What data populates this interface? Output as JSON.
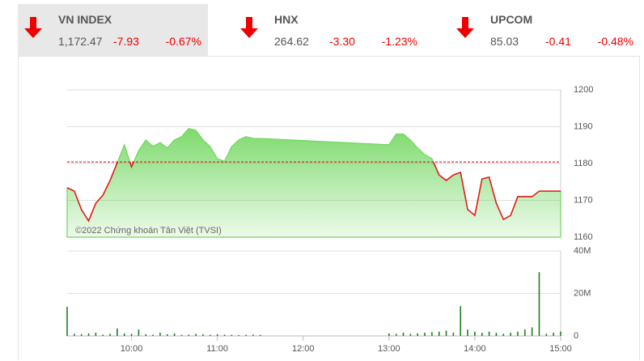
{
  "header": {
    "indices": [
      {
        "name": "VN INDEX",
        "value": "1,172.47",
        "change": "-7.93",
        "percent": "-0.67%"
      },
      {
        "name": "HNX",
        "value": "264.62",
        "change": "-3.30",
        "percent": "-1.23%"
      },
      {
        "name": "UPCOM",
        "value": "85.03",
        "change": "-0.41",
        "percent": "-0.48%"
      }
    ]
  },
  "chart_data": [
    {
      "type": "area",
      "annotation": "©2022 Chứng khoán Tân Việt (TVSI)",
      "x": [
        "09:15",
        "09:20",
        "09:25",
        "09:30",
        "09:35",
        "09:40",
        "09:45",
        "09:50",
        "09:55",
        "10:00",
        "10:05",
        "10:10",
        "10:15",
        "10:20",
        "10:25",
        "10:30",
        "10:35",
        "10:40",
        "10:45",
        "10:50",
        "10:55",
        "11:00",
        "11:05",
        "11:10",
        "11:15",
        "11:20",
        "11:25",
        "11:30",
        "13:00",
        "13:05",
        "13:10",
        "13:15",
        "13:20",
        "13:25",
        "13:30",
        "13:35",
        "13:40",
        "13:45",
        "13:50",
        "13:55",
        "14:00",
        "14:05",
        "14:10",
        "14:15",
        "14:20",
        "14:25",
        "14:30",
        "14:35",
        "14:40",
        "14:45",
        "14:50",
        "14:55",
        "15:00"
      ],
      "values": [
        1173.4,
        1172.5,
        1167.5,
        1164.4,
        1169.2,
        1171.4,
        1175.4,
        1180.2,
        1185.1,
        1179.1,
        1183.5,
        1186.4,
        1184.6,
        1185.7,
        1184.2,
        1186.4,
        1187.3,
        1189.5,
        1189.0,
        1186.4,
        1184.6,
        1181.3,
        1180.6,
        1184.6,
        1186.4,
        1187.3,
        1186.8,
        1186.8,
        1185.1,
        1188.0,
        1188.0,
        1186.4,
        1184.2,
        1182.4,
        1181.3,
        1176.9,
        1175.4,
        1176.9,
        1177.6,
        1167.5,
        1165.9,
        1175.8,
        1176.3,
        1169.2,
        1164.8,
        1165.9,
        1171.0,
        1171.0,
        1171.0,
        1172.5,
        1172.5,
        1172.5,
        1172.5
      ],
      "reference_line": 1180.4,
      "color": "#e31b1b",
      "fill_color": "#6fd65c",
      "reference_color": "#cc0000",
      "xlim": [
        "09:15",
        "15:00"
      ],
      "ylim": [
        1160,
        1200
      ],
      "yticks": [
        1160,
        1170,
        1180,
        1190,
        1200
      ],
      "grid": true
    },
    {
      "type": "bar",
      "x": [
        "09:15",
        "09:20",
        "09:25",
        "09:30",
        "09:35",
        "09:40",
        "09:45",
        "09:50",
        "09:55",
        "10:00",
        "10:05",
        "10:10",
        "10:15",
        "10:20",
        "10:25",
        "10:30",
        "10:35",
        "10:40",
        "10:45",
        "10:50",
        "10:55",
        "11:00",
        "11:05",
        "11:10",
        "11:15",
        "11:20",
        "11:25",
        "11:30",
        "13:00",
        "13:05",
        "13:10",
        "13:15",
        "13:20",
        "13:25",
        "13:30",
        "13:35",
        "13:40",
        "13:45",
        "13:50",
        "13:55",
        "14:00",
        "14:05",
        "14:10",
        "14:15",
        "14:20",
        "14:25",
        "14:30",
        "14:35",
        "14:40",
        "14:45",
        "14:50",
        "14:55",
        "15:00"
      ],
      "values": [
        13.7,
        1.0,
        0.8,
        1.2,
        1.5,
        0.6,
        1.0,
        3.5,
        1.2,
        1.0,
        3.0,
        0.8,
        0.6,
        1.5,
        0.8,
        1.2,
        0.5,
        0.6,
        1.0,
        0.8,
        0.5,
        0.8,
        0.6,
        0.5,
        0.4,
        0.5,
        0.6,
        0.5,
        1.2,
        1.0,
        1.5,
        1.0,
        1.2,
        1.5,
        1.8,
        2.0,
        2.5,
        1.5,
        14.0,
        3.0,
        2.0,
        1.5,
        2.0,
        1.5,
        1.0,
        1.5,
        2.0,
        3.0,
        4.0,
        30.0,
        1.0,
        1.5,
        2.0
      ],
      "color": "#1e7d1e",
      "xlim": [
        "09:15",
        "15:00"
      ],
      "xticks": [
        "10:00",
        "11:00",
        "12:00",
        "13:00",
        "14:00",
        "15:00"
      ],
      "ylim": [
        0,
        40
      ],
      "yticks": [
        0,
        {
          "value": 20,
          "label": "20M"
        },
        {
          "value": 40,
          "label": "40M"
        }
      ],
      "grid": true
    }
  ]
}
